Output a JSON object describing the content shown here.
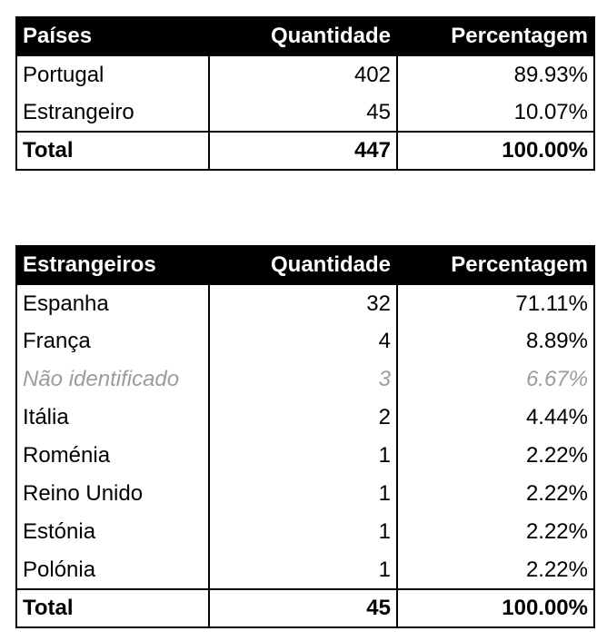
{
  "table1": {
    "headers": [
      "Países",
      "Quantidade",
      "Percentagem"
    ],
    "rows": [
      [
        "Portugal",
        "402",
        "89.93%"
      ],
      [
        "Estrangeiro",
        "45",
        "10.07%"
      ]
    ],
    "total": [
      "Total",
      "447",
      "100.00%"
    ]
  },
  "table2": {
    "headers": [
      "Estrangeiros",
      "Quantidade",
      "Percentagem"
    ],
    "rows": [
      [
        "Espanha",
        "32",
        "71.11%"
      ],
      [
        "França",
        "4",
        "8.89%"
      ],
      [
        "Não identificado",
        "3",
        "6.67%"
      ],
      [
        "Itália",
        "2",
        "4.44%"
      ],
      [
        "Roménia",
        "1",
        "2.22%"
      ],
      [
        "Reino Unido",
        "1",
        "2.22%"
      ],
      [
        "Estónia",
        "1",
        "2.22%"
      ],
      [
        "Polónia",
        "1",
        "2.22%"
      ]
    ],
    "total": [
      "Total",
      "45",
      "100.00%"
    ]
  }
}
